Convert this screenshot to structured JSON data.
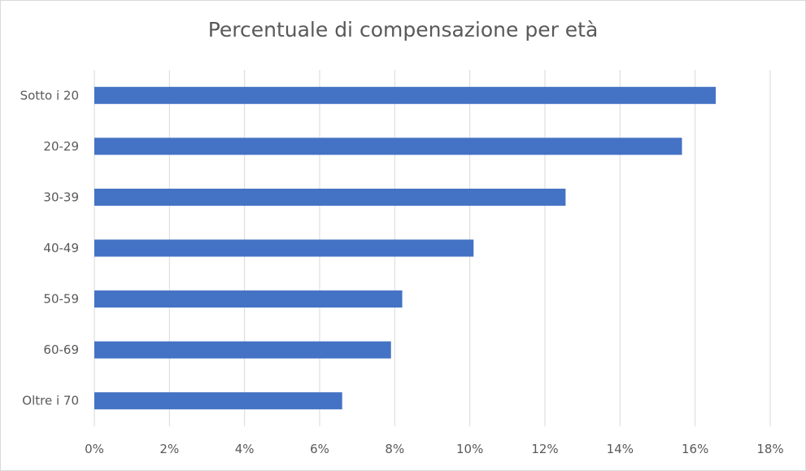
{
  "chart_data": {
    "type": "bar",
    "orientation": "horizontal",
    "title": "Percentuale di compensazione per età",
    "xlabel": "",
    "ylabel": "",
    "categories": [
      "Sotto i 20",
      "20-29",
      "30-39",
      "40-49",
      "50-59",
      "60-69",
      "Oltre i 70"
    ],
    "values": [
      16.55,
      15.65,
      12.55,
      10.1,
      8.2,
      7.9,
      6.6
    ],
    "xlim": [
      0,
      18
    ],
    "x_ticks": [
      "0%",
      "2%",
      "4%",
      "6%",
      "8%",
      "10%",
      "12%",
      "14%",
      "16%",
      "18%"
    ],
    "grid": "vertical",
    "legend": "none",
    "colors": {
      "bar": "#4472C4",
      "grid": "#d9d9d9",
      "text": "#595959"
    }
  }
}
